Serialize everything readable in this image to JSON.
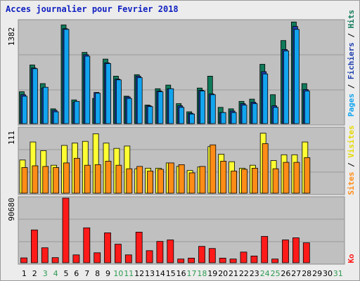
{
  "title": "Acces journalier pour Fevrier 2018",
  "colors": {
    "pages": "#12a4ef",
    "fichiers": "#1f3fae",
    "hits": "#0f7a5a",
    "visites": "#ffff33",
    "sites": "#ff8c16",
    "ko": "#ff1a1a",
    "weekend_label": "#2e9a50",
    "weekday_label": "#000000",
    "plot_bg": "#c0c0c0"
  },
  "right_labels": {
    "top": {
      "pages": "Pages",
      "fichiers": "Fichiers",
      "hits": "Hits",
      "sep": " / "
    },
    "middle": {
      "sites": "Sites",
      "visites": "Visites",
      "sep": " / "
    },
    "bottom": {
      "ko": "Ko"
    }
  },
  "chart_data": [
    {
      "type": "bar",
      "categories": [
        "1",
        "2",
        "3",
        "4",
        "5",
        "6",
        "7",
        "8",
        "9",
        "10",
        "11",
        "12",
        "13",
        "14",
        "15",
        "16",
        "17",
        "18",
        "19",
        "20",
        "21",
        "22",
        "23",
        "24",
        "25",
        "26",
        "27",
        "28",
        "29",
        "30",
        "31"
      ],
      "weekend": [
        "3",
        "4",
        "10",
        "11",
        "17",
        "18",
        "24",
        "25",
        "31"
      ],
      "ymax_label": "1382",
      "ylim": [
        0,
        1382
      ],
      "series": [
        {
          "name": "Hits",
          "values": [
            430,
            790,
            540,
            200,
            1330,
            320,
            960,
            340,
            870,
            640,
            370,
            660,
            250,
            470,
            520,
            270,
            160,
            480,
            640,
            220,
            200,
            300,
            330,
            800,
            390,
            1120,
            1370,
            540,
            0,
            0,
            0
          ]
        },
        {
          "name": "Fichiers",
          "values": [
            390,
            750,
            480,
            180,
            1280,
            290,
            930,
            420,
            820,
            600,
            360,
            640,
            240,
            440,
            470,
            240,
            140,
            450,
            400,
            150,
            170,
            270,
            290,
            700,
            240,
            1000,
            1310,
            460,
            0,
            0,
            0
          ]
        },
        {
          "name": "Pages",
          "values": [
            370,
            740,
            490,
            160,
            1270,
            300,
            910,
            410,
            810,
            590,
            340,
            620,
            230,
            430,
            470,
            220,
            130,
            440,
            390,
            150,
            150,
            250,
            270,
            670,
            220,
            980,
            1270,
            440,
            0,
            0,
            0
          ]
        }
      ]
    },
    {
      "type": "bar",
      "categories": [
        "1",
        "2",
        "3",
        "4",
        "5",
        "6",
        "7",
        "8",
        "9",
        "10",
        "11",
        "12",
        "13",
        "14",
        "15",
        "16",
        "17",
        "18",
        "19",
        "20",
        "21",
        "22",
        "23",
        "24",
        "25",
        "26",
        "27",
        "28",
        "29",
        "30",
        "31"
      ],
      "ymax_label": "111",
      "ylim": [
        0,
        111
      ],
      "series": [
        {
          "name": "Visites",
          "values": [
            57,
            88,
            73,
            48,
            82,
            86,
            89,
            102,
            86,
            77,
            81,
            42,
            43,
            43,
            52,
            46,
            39,
            45,
            80,
            67,
            54,
            43,
            48,
            103,
            56,
            66,
            66,
            88,
            0,
            0,
            0
          ]
        },
        {
          "name": "Sites",
          "values": [
            44,
            47,
            46,
            44,
            52,
            60,
            48,
            49,
            55,
            48,
            42,
            46,
            38,
            41,
            52,
            49,
            35,
            46,
            83,
            55,
            38,
            41,
            43,
            85,
            42,
            53,
            53,
            61,
            0,
            0,
            0
          ]
        }
      ]
    },
    {
      "type": "bar",
      "categories": [
        "1",
        "2",
        "3",
        "4",
        "5",
        "6",
        "7",
        "8",
        "9",
        "10",
        "11",
        "12",
        "13",
        "14",
        "15",
        "16",
        "17",
        "18",
        "19",
        "20",
        "21",
        "22",
        "23",
        "24",
        "25",
        "26",
        "27",
        "28",
        "29",
        "30",
        "31"
      ],
      "ymax_label": "90680",
      "ylim": [
        0,
        90680
      ],
      "series": [
        {
          "name": "Ko",
          "values": [
            6800,
            46000,
            21000,
            7200,
            90680,
            11000,
            49000,
            14000,
            42000,
            26000,
            11000,
            43000,
            17000,
            30000,
            32000,
            5200,
            6500,
            23000,
            20000,
            6500,
            5200,
            15000,
            9500,
            37000,
            5200,
            32000,
            35000,
            28000,
            0,
            0,
            0
          ]
        }
      ]
    }
  ]
}
